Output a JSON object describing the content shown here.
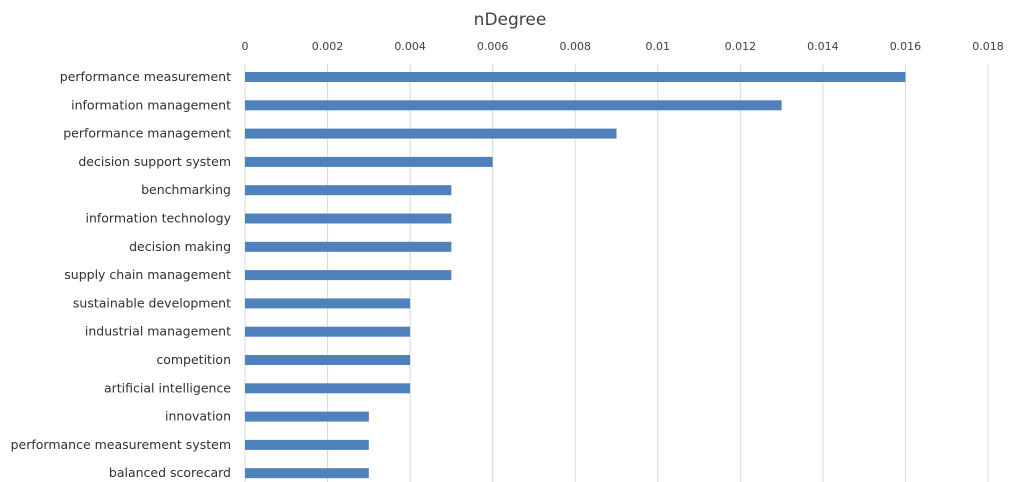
{
  "chart_data": {
    "type": "bar",
    "orientation": "horizontal",
    "title": "nDegree",
    "xlabel": "",
    "ylabel": "",
    "xlim": [
      0,
      0.018
    ],
    "x_ticks": [
      "0",
      "0.002",
      "0.004",
      "0.006",
      "0.008",
      "0.01",
      "0.012",
      "0.014",
      "0.016",
      "0.018"
    ],
    "x_tick_values": [
      0,
      0.002,
      0.004,
      0.006,
      0.008,
      0.01,
      0.012,
      0.014,
      0.016,
      0.018
    ],
    "x_axis_position": "top",
    "grid": true,
    "legend": "none",
    "bar_color": "#4f81bd",
    "categories": [
      "performance measurement",
      "information management",
      "performance management",
      "decision support system",
      "benchmarking",
      "information technology",
      "decision making",
      "supply chain management",
      "sustainable development",
      "industrial management",
      "competition",
      "artificial intelligence",
      "innovation",
      "performance measurement system",
      "balanced scorecard"
    ],
    "values": [
      0.016,
      0.013,
      0.009,
      0.006,
      0.005,
      0.005,
      0.005,
      0.005,
      0.004,
      0.004,
      0.004,
      0.004,
      0.003,
      0.003,
      0.003
    ]
  }
}
